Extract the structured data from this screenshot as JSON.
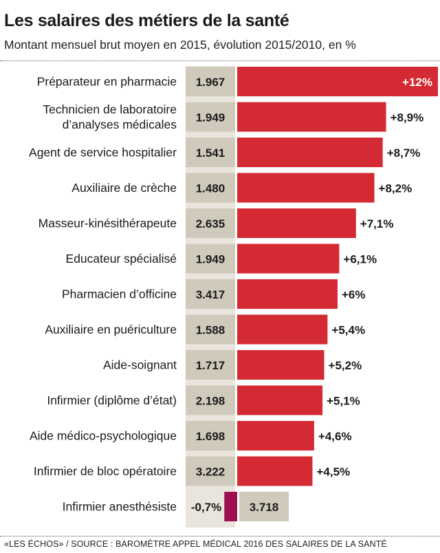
{
  "header": {
    "title": "Les salaires des métiers de la santé",
    "subtitle": "Montant mensuel brut moyen en 2015, évolution 2015/2010, en %"
  },
  "footer": {
    "source": "«LES ÉCHOS» / SOURCE : BAROMÈTRE APPEL MÉDICAL 2016 DES SALAIRES DE LA SANTÉ"
  },
  "colors": {
    "positive_bar": "#d42a33",
    "negative_bar": "#9c1050",
    "salary_column": "#cfcabb",
    "text": "#1a1a1a"
  },
  "chart_data": {
    "type": "bar",
    "orientation": "horizontal",
    "categories": [
      [
        "Préparateur en pharmacie"
      ],
      [
        "Technicien de laboratoire",
        "d’analyses médicales"
      ],
      [
        "Agent de service hospitalier"
      ],
      [
        "Auxiliaire de crèche"
      ],
      [
        "Masseur-kinésithérapeute"
      ],
      [
        "Educateur spécialisé"
      ],
      [
        "Pharmacien d’officine"
      ],
      [
        "Auxiliaire en puériculture"
      ],
      [
        "Aide-soignant"
      ],
      [
        "Infirmier (diplôme d’état)"
      ],
      [
        "Aide médico-psychologique"
      ],
      [
        "Infirmier de bloc opératoire"
      ],
      [
        "Infirmier anesthésiste"
      ]
    ],
    "salary_labels": [
      "1.967",
      "1.949",
      "1.541",
      "1.480",
      "2.635",
      "1.949",
      "3.417",
      "1.588",
      "1.717",
      "2.198",
      "1.698",
      "3.222",
      "3.718"
    ],
    "values": [
      12,
      8.9,
      8.7,
      8.2,
      7.1,
      6.1,
      6,
      5.4,
      5.2,
      5.1,
      4.6,
      4.5,
      -0.7
    ],
    "value_labels": [
      "+12%",
      "+8,9%",
      "+8,7%",
      "+8,2%",
      "+7,1%",
      "+6,1%",
      "+6%",
      "+5,4%",
      "+5,2%",
      "+5,1%",
      "+4,6%",
      "+4,5%",
      "-0,7%"
    ]
  }
}
